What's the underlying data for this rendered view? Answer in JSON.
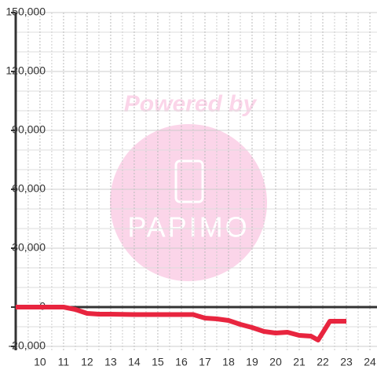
{
  "chart_data": {
    "type": "line",
    "watermark": {
      "line1": "Powered by",
      "line2": "PAPIMO"
    },
    "x": [
      8.97,
      11,
      11.5,
      12,
      12.5,
      13,
      14,
      15,
      16,
      16.5,
      17,
      17.5,
      18,
      18.5,
      19,
      19.5,
      20,
      20.5,
      21,
      21.5,
      21.8,
      22,
      22.3,
      23
    ],
    "series": [
      {
        "color": "#e8253f",
        "values": [
          0,
          0,
          -1200,
          -3200,
          -3600,
          -3600,
          -3800,
          -3800,
          -3800,
          -3800,
          -5600,
          -6000,
          -6800,
          -8800,
          -10400,
          -12400,
          -13200,
          -12800,
          -14400,
          -14800,
          -16800,
          -13000,
          -7200,
          -7200
        ]
      }
    ],
    "xlim": [
      8.97,
      24.3
    ],
    "xticks": [
      10,
      11,
      12,
      13,
      14,
      15,
      16,
      17,
      18,
      19,
      20,
      21,
      22,
      23,
      24
    ],
    "xminorticks": [
      9.5,
      10.5,
      11.5,
      12.5,
      13.5,
      14.5,
      15.5,
      16.5,
      17.5,
      18.5,
      19.5,
      20.5,
      21.5,
      22.5,
      23.5
    ],
    "ylim": [
      -22000,
      150000
    ],
    "yticks": [
      {
        "value": -20000,
        "label": "-20,000"
      },
      0,
      {
        "value": 30000,
        "label": "30,000"
      },
      {
        "value": 60000,
        "label": "60,000"
      },
      {
        "value": 90000,
        "label": "90,000"
      },
      {
        "value": 120000,
        "label": "120,000"
      },
      {
        "value": 150000,
        "label": "150,000"
      }
    ],
    "yminorticks": [
      -10000,
      10000,
      20000,
      40000,
      50000,
      70000,
      80000,
      100000,
      110000,
      130000,
      140000
    ],
    "grid": true
  }
}
